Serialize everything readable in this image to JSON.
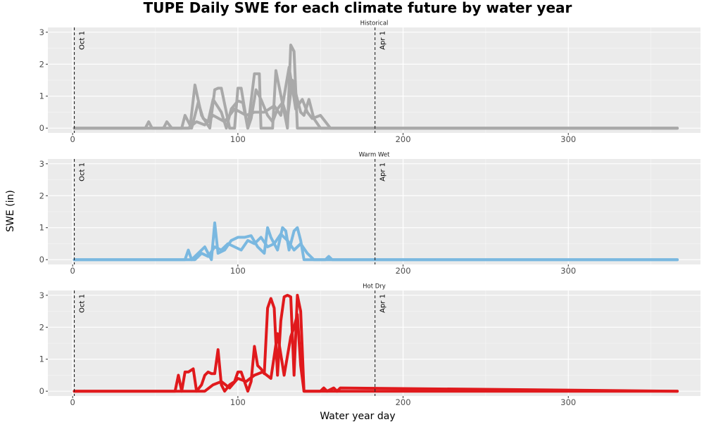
{
  "chart_data": {
    "type": "line",
    "title": "TUPE Daily SWE for each climate future by water year",
    "xlabel": "Water year day",
    "ylabel": "SWE (in)",
    "xlim": [
      -15,
      380
    ],
    "ylim": [
      -0.15,
      3.15
    ],
    "x_ticks": [
      0,
      100,
      200,
      300
    ],
    "y_ticks": [
      0,
      1,
      2,
      3
    ],
    "grid": true,
    "legend": "none",
    "reference_lines": [
      {
        "x": 1,
        "label": "Oct 1"
      },
      {
        "x": 183,
        "label": "Apr 1"
      }
    ],
    "panels": [
      {
        "name": "Historical",
        "color": "#a9a9a9",
        "series": [
          {
            "x": [
              1,
              44,
              46,
              48,
              55,
              57,
              60,
              71,
              74,
              78,
              83,
              86,
              88,
              90,
              95,
              98,
              100,
              102,
              106,
              110,
              113,
              114,
              121,
              123,
              130,
              132,
              134,
              136,
              148,
              157,
              165,
              366
            ],
            "y": [
              0,
              0,
              0.2,
              0,
              0,
              0.2,
              0,
              0,
              1.35,
              0.4,
              0,
              1.2,
              1.25,
              1.25,
              0,
              0,
              1.25,
              1.25,
              0,
              1.7,
              1.7,
              0,
              0,
              1.8,
              0,
              2.6,
              2.4,
              0,
              0,
              0,
              0,
              0
            ]
          },
          {
            "x": [
              1,
              66,
              68,
              72,
              76,
              79,
              82,
              85,
              90,
              93,
              96,
              100,
              103,
              106,
              108,
              111,
              114,
              118,
              121,
              124,
              127,
              130,
              133,
              136,
              138,
              140,
              143,
              146,
              150,
              366
            ],
            "y": [
              0,
              0,
              0.4,
              0,
              0.8,
              0.3,
              0.2,
              0.9,
              0.5,
              0,
              0.6,
              0.85,
              0.8,
              0,
              0.3,
              1.2,
              0.9,
              0.4,
              0.2,
              0.6,
              0.8,
              0.3,
              1.5,
              0.9,
              0.5,
              0.4,
              0.9,
              0.3,
              0,
              0
            ]
          },
          {
            "x": [
              1,
              70,
              75,
              80,
              85,
              92,
              98,
              105,
              110,
              116,
              122,
              126,
              131,
              135,
              139,
              142,
              145,
              150,
              153,
              156,
              160,
              366
            ],
            "y": [
              0,
              0,
              0.2,
              0.1,
              0.4,
              0.2,
              0.6,
              0.4,
              0.5,
              0.5,
              0.7,
              0.4,
              1.9,
              0.6,
              0.9,
              0.5,
              0.3,
              0.4,
              0.2,
              0,
              0,
              0
            ]
          }
        ]
      },
      {
        "name": "Warm Wet",
        "color": "#7ab8e0",
        "series": [
          {
            "x": [
              1,
              68,
              70,
              72,
              76,
              80,
              84,
              86,
              88,
              92,
              96,
              100,
              104,
              108,
              112,
              116,
              118,
              120,
              124,
              127,
              129,
              131,
              134,
              136,
              138,
              140,
              150,
              155,
              366
            ],
            "y": [
              0,
              0,
              0.3,
              0,
              0.2,
              0.4,
              0,
              1.15,
              0.2,
              0.3,
              0.6,
              0.7,
              0.7,
              0.75,
              0.4,
              0.2,
              1.0,
              0.7,
              0.3,
              1.0,
              0.9,
              0.3,
              0.9,
              1.0,
              0.6,
              0,
              0,
              0,
              0
            ]
          },
          {
            "x": [
              1,
              74,
              78,
              82,
              86,
              90,
              94,
              98,
              102,
              106,
              110,
              114,
              118,
              122,
              126,
              130,
              134,
              138,
              142,
              146,
              153,
              155,
              157,
              366
            ],
            "y": [
              0,
              0,
              0.2,
              0.1,
              0.4,
              0.3,
              0.5,
              0.4,
              0.3,
              0.6,
              0.5,
              0.7,
              0.4,
              0.5,
              0.8,
              0.6,
              0.3,
              0.5,
              0.2,
              0,
              0,
              0.1,
              0,
              0
            ]
          }
        ]
      },
      {
        "name": "Hot Dry",
        "color": "#e0191c",
        "series": [
          {
            "x": [
              1,
              62,
              64,
              66,
              68,
              70,
              73,
              75,
              78,
              80,
              82,
              84,
              86,
              88,
              90,
              92,
              95,
              98,
              100,
              102,
              106,
              108,
              110,
              112,
              114,
              116,
              118,
              120,
              122,
              124,
              126,
              128,
              130,
              132,
              134,
              136,
              138,
              140,
              142,
              366
            ],
            "y": [
              0,
              0,
              0.5,
              0,
              0.6,
              0.6,
              0.7,
              0,
              0.2,
              0.5,
              0.6,
              0.55,
              0.55,
              1.3,
              0.2,
              0,
              0.2,
              0.3,
              0.6,
              0.6,
              0,
              0.3,
              1.4,
              0.8,
              0.7,
              0.55,
              2.6,
              2.9,
              2.6,
              0.5,
              2.2,
              2.95,
              3.0,
              2.95,
              0.5,
              3.0,
              2.5,
              0,
              0,
              0
            ]
          },
          {
            "x": [
              1,
              80,
              85,
              90,
              95,
              100,
              105,
              110,
              115,
              120,
              124,
              128,
              132,
              134,
              136,
              138,
              140,
              142,
              150,
              152,
              154,
              158,
              160,
              162,
              366
            ],
            "y": [
              0,
              0,
              0.2,
              0.3,
              0.1,
              0.4,
              0.3,
              0.5,
              0.6,
              0.4,
              1.8,
              0.5,
              1.7,
              2.0,
              2.4,
              0.8,
              0,
              0,
              0,
              0.1,
              0,
              0.1,
              0,
              0.1,
              0
            ]
          }
        ]
      }
    ]
  }
}
